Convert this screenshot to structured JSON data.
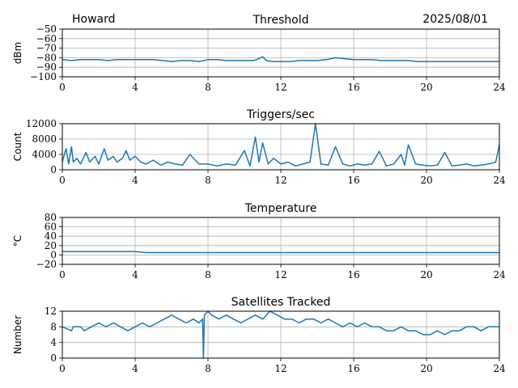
{
  "header": {
    "station": "Howard",
    "date": "2025/08/01"
  },
  "colors": {
    "line": "#1f77b4",
    "grid": "#b0b0b0"
  },
  "chart_data": [
    {
      "type": "line",
      "title": "Threshold",
      "ylabel": "dBm",
      "xlim": [
        0,
        24
      ],
      "ylim": [
        -100,
        -50
      ],
      "xticks": [
        0,
        4,
        8,
        12,
        16,
        20,
        24
      ],
      "yticks": [
        -100,
        -90,
        -80,
        -70,
        -60,
        -50
      ],
      "ytick_labels": [
        "−100",
        "−90",
        "−80",
        "−70",
        "−60",
        "−50"
      ],
      "grid": true,
      "series": [
        {
          "x": [
            0,
            0.5,
            1,
            1.5,
            2,
            2.5,
            3,
            3.5,
            4,
            4.5,
            5,
            5.5,
            6,
            6.5,
            7,
            7.5,
            8,
            8.5,
            9,
            9.5,
            10,
            10.5,
            10.8,
            11,
            11.2,
            11.5,
            12,
            12.5,
            13,
            13.5,
            14,
            14.5,
            15,
            15.5,
            16,
            16.5,
            17,
            17.5,
            18,
            18.5,
            19,
            19.5,
            20,
            20.5,
            21,
            21.5,
            22,
            22.5,
            23,
            23.5,
            24
          ],
          "y": [
            -82,
            -83,
            -82,
            -82,
            -82,
            -83,
            -82,
            -82,
            -82,
            -82,
            -82,
            -83,
            -84,
            -83,
            -83,
            -84,
            -82,
            -82,
            -83,
            -83,
            -83,
            -83,
            -81,
            -79,
            -83,
            -84,
            -84,
            -84,
            -83,
            -83,
            -83,
            -82,
            -80,
            -81,
            -82,
            -82,
            -82,
            -83,
            -83,
            -83,
            -83,
            -84,
            -84,
            -84,
            -84,
            -84,
            -84,
            -84,
            -84,
            -84,
            -84
          ]
        }
      ]
    },
    {
      "type": "line",
      "title": "Triggers/sec",
      "ylabel": "Count",
      "xlim": [
        0,
        24
      ],
      "ylim": [
        0,
        12000
      ],
      "xticks": [
        0,
        4,
        8,
        12,
        16,
        20,
        24
      ],
      "yticks": [
        0,
        4000,
        8000,
        12000
      ],
      "ytick_labels": [
        "0",
        "4000",
        "8000",
        "12000"
      ],
      "grid": true,
      "series": [
        {
          "x": [
            0,
            0.2,
            0.35,
            0.5,
            0.6,
            0.8,
            1,
            1.3,
            1.5,
            1.8,
            2,
            2.3,
            2.5,
            2.8,
            3,
            3.3,
            3.5,
            3.7,
            4,
            4.3,
            4.6,
            5,
            5.4,
            5.8,
            6.2,
            6.6,
            7,
            7.5,
            8,
            8.5,
            9,
            9.5,
            10,
            10.3,
            10.6,
            10.8,
            11,
            11.3,
            11.6,
            12,
            12.4,
            12.8,
            13.2,
            13.6,
            13.9,
            14.2,
            14.6,
            15,
            15.4,
            15.8,
            16.2,
            16.6,
            17,
            17.4,
            17.8,
            18.2,
            18.6,
            18.8,
            19,
            19.4,
            19.8,
            20.2,
            20.6,
            21,
            21.4,
            21.8,
            22.2,
            22.6,
            23,
            23.4,
            23.8,
            24
          ],
          "y": [
            2000,
            5500,
            1500,
            6000,
            2000,
            3000,
            1500,
            4500,
            2000,
            3500,
            1500,
            5500,
            2500,
            3500,
            2000,
            3000,
            5000,
            2500,
            3500,
            2000,
            1500,
            2500,
            1200,
            2000,
            1500,
            1200,
            4000,
            1500,
            1500,
            1000,
            1500,
            1200,
            5000,
            1000,
            8500,
            2000,
            7000,
            1500,
            3000,
            1500,
            2000,
            1000,
            1500,
            2000,
            12000,
            1500,
            1200,
            6000,
            1500,
            1000,
            1500,
            1200,
            1500,
            4800,
            1000,
            1500,
            4000,
            1200,
            6500,
            1500,
            1200,
            1000,
            1200,
            4500,
            1000,
            1200,
            1500,
            1000,
            1200,
            1500,
            2000,
            6500
          ]
        }
      ]
    },
    {
      "type": "line",
      "title": "Temperature",
      "ylabel": "°C",
      "xlim": [
        0,
        24
      ],
      "ylim": [
        -20,
        80
      ],
      "xticks": [
        0,
        4,
        8,
        12,
        16,
        20,
        24
      ],
      "yticks": [
        -20,
        0,
        20,
        40,
        60,
        80
      ],
      "ytick_labels": [
        "−20",
        "0",
        "20",
        "40",
        "60",
        "80"
      ],
      "grid": true,
      "series": [
        {
          "x": [
            0,
            2,
            4,
            4.3,
            4.6,
            8,
            12,
            16,
            20,
            24
          ],
          "y": [
            7,
            7,
            7,
            6,
            5,
            5,
            5,
            5,
            5,
            5
          ]
        }
      ]
    },
    {
      "type": "line",
      "title": "Satellites Tracked",
      "ylabel": "Number",
      "xlim": [
        0,
        24
      ],
      "ylim": [
        0,
        12
      ],
      "xticks": [
        0,
        4,
        8,
        12,
        16,
        20,
        24
      ],
      "yticks": [
        0,
        4,
        8,
        12
      ],
      "ytick_labels": [
        "0",
        "4",
        "8",
        "12"
      ],
      "grid": true,
      "series": [
        {
          "x": [
            0,
            0.5,
            0.6,
            1,
            1.2,
            1.6,
            2,
            2.4,
            2.8,
            3.2,
            3.6,
            4,
            4.4,
            4.8,
            5.2,
            5.6,
            6,
            6.4,
            6.8,
            7.2,
            7.5,
            7.7,
            7.75,
            7.8,
            8,
            8.2,
            8.6,
            9,
            9.4,
            9.8,
            10.2,
            10.6,
            11,
            11.4,
            11.8,
            12.2,
            12.6,
            13,
            13.4,
            13.8,
            14.2,
            14.6,
            15,
            15.4,
            15.8,
            16.2,
            16.6,
            17,
            17.4,
            17.8,
            18.2,
            18.6,
            19,
            19.4,
            19.8,
            20.2,
            20.6,
            21,
            21.4,
            21.8,
            22.2,
            22.6,
            23,
            23.4,
            23.8,
            24
          ],
          "y": [
            8,
            7,
            8,
            8,
            7,
            8,
            9,
            8,
            9,
            8,
            7,
            8,
            9,
            8,
            9,
            10,
            11,
            10,
            9,
            10,
            9,
            10,
            0,
            11,
            12,
            11,
            10,
            11,
            10,
            9,
            10,
            11,
            10,
            12,
            11,
            10,
            10,
            9,
            10,
            10,
            9,
            10,
            9,
            8,
            9,
            8,
            9,
            8,
            8,
            7,
            7,
            8,
            7,
            7,
            6,
            6,
            7,
            6,
            7,
            7,
            8,
            8,
            7,
            8,
            8,
            8
          ]
        }
      ]
    }
  ]
}
